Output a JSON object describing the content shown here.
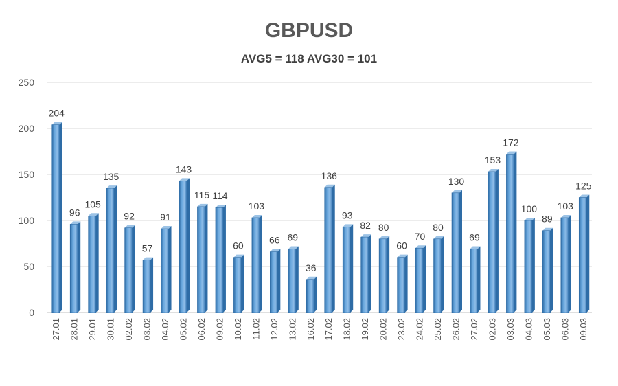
{
  "chart_data": {
    "type": "bar",
    "title": "GBPUSD",
    "subtitle": "AVG5 = 118 AVG30 = 101",
    "xlabel": "",
    "ylabel": "",
    "ylim": [
      0,
      250
    ],
    "yticks": [
      0,
      50,
      100,
      150,
      200,
      250
    ],
    "grid": true,
    "legend": "none",
    "categories": [
      "27.01",
      "28.01",
      "29.01",
      "30.01",
      "02.02",
      "03.02",
      "04.02",
      "05.02",
      "06.02",
      "09.02",
      "10.02",
      "11.02",
      "12.02",
      "13.02",
      "16.02",
      "17.02",
      "18.02",
      "19.02",
      "20.02",
      "23.02",
      "24.02",
      "25.02",
      "26.02",
      "27.02",
      "02.03",
      "03.03",
      "04.03",
      "05.03",
      "06.03",
      "09.03"
    ],
    "values": [
      204,
      96,
      105,
      135,
      92,
      57,
      91,
      143,
      115,
      114,
      60,
      103,
      66,
      69,
      36,
      136,
      93,
      82,
      80,
      60,
      70,
      80,
      130,
      69,
      153,
      172,
      100,
      89,
      103,
      125
    ],
    "colors": {
      "bar": "#5b9bd5",
      "bar_dark": "#2e6ca6",
      "bar_light": "#9cc3e6",
      "grid": "#d9d9d9"
    }
  }
}
